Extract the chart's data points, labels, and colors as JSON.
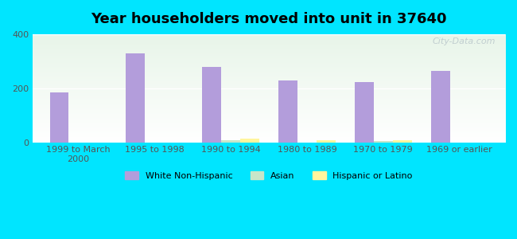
{
  "title": "Year householders moved into unit in 37640",
  "categories": [
    "1999 to March\n2000",
    "1995 to 1998",
    "1990 to 1994",
    "1980 to 1989",
    "1970 to 1979",
    "1969 or earlier"
  ],
  "white_non_hispanic": [
    183,
    328,
    278,
    228,
    224,
    263
  ],
  "asian": [
    0,
    0,
    7,
    0,
    5,
    0
  ],
  "hispanic_or_latino": [
    0,
    0,
    13,
    8,
    7,
    0
  ],
  "bar_width": 0.25,
  "white_color": "#b39ddb",
  "asian_color": "#c8e6c9",
  "hispanic_color": "#fff59d",
  "background_outer": "#00e5ff",
  "ylim": [
    0,
    400
  ],
  "yticks": [
    0,
    200,
    400
  ],
  "watermark": "City-Data.com"
}
